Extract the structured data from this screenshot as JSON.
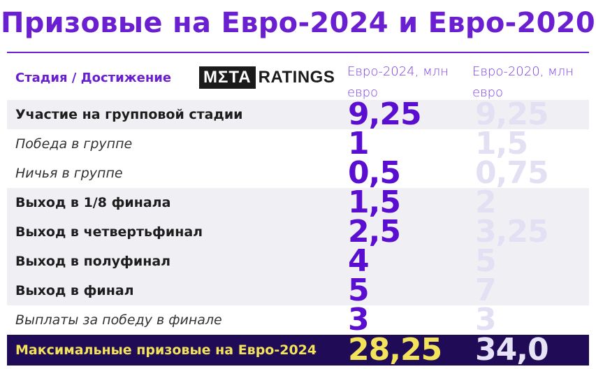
{
  "title": "Призовые на Евро-2024 и Евро-2020",
  "header": {
    "stage_label": "Стадия / Достижение",
    "logo_box": "ΜΣΤΑ",
    "logo_text": "RATINGS",
    "col_2024": "Евро-2024, млн евро",
    "col_2020": "Евро-2020, млн евро"
  },
  "colors": {
    "accent_purple": "#6a1fd1",
    "value_2024": "#5a0fd0",
    "value_2020": "#e4e0f4",
    "max_row_bg": "#1f0b56",
    "max_row_text": "#f2e35a"
  },
  "chart_data": {
    "type": "table",
    "title": "Призовые на Евро-2024 и Евро-2020",
    "columns": [
      "Стадия / Достижение",
      "Евро-2024, млн евро",
      "Евро-2020, млн евро"
    ],
    "rows": [
      {
        "label": "Участие на групповой стадии",
        "v2024": "9,25",
        "v2020": "9,25",
        "style": "bold",
        "shaded": true
      },
      {
        "label": "Победа в группе",
        "v2024": "1",
        "v2020": "1,5",
        "style": "italic",
        "shaded": false
      },
      {
        "label": "Ничья в группе",
        "v2024": "0,5",
        "v2020": "0,75",
        "style": "italic",
        "shaded": false
      },
      {
        "label": "Выход в 1/8 финала",
        "v2024": "1,5",
        "v2020": "2",
        "style": "bold",
        "shaded": true
      },
      {
        "label": "Выход в четвертьфинал",
        "v2024": "2,5",
        "v2020": "3,25",
        "style": "bold",
        "shaded": true
      },
      {
        "label": "Выход в полуфинал",
        "v2024": "4",
        "v2020": "5",
        "style": "bold",
        "shaded": true
      },
      {
        "label": "Выход в финал",
        "v2024": "5",
        "v2020": "7",
        "style": "bold",
        "shaded": true
      },
      {
        "label": "Выплаты за победу в финале",
        "v2024": "3",
        "v2020": "3",
        "style": "italic",
        "shaded": false
      }
    ],
    "total": {
      "label": "Максимальные призовые на Евро-2024",
      "v2024": "28,25",
      "v2020": "34,0"
    }
  }
}
